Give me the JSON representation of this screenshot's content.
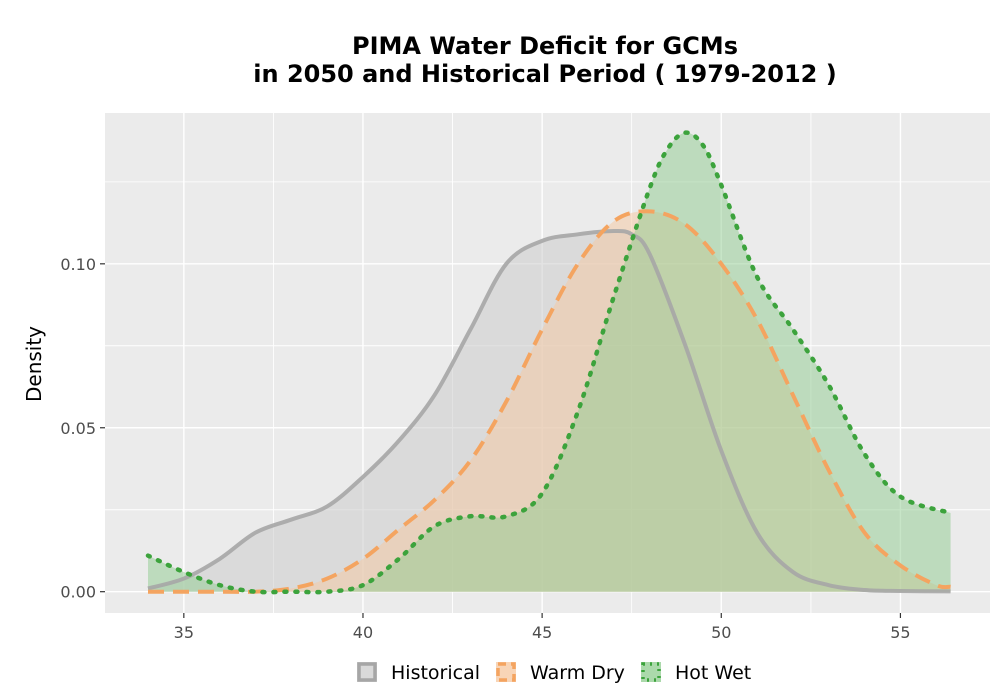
{
  "chart_data": {
    "type": "area",
    "title_line1": "PIMA  Water Deficit for GCMs",
    "title_line2": "in 2050 and Historical Period ( 1979-2012 )",
    "xlabel": "",
    "ylabel": "Density",
    "xlim": [
      32.8,
      57.5
    ],
    "ylim": [
      -0.0065,
      0.146
    ],
    "x_ticks": [
      35,
      40,
      45,
      50,
      55
    ],
    "y_ticks": [
      0.0,
      0.05,
      0.1
    ],
    "y_tick_labels": [
      "0.00",
      "0.05",
      "0.10"
    ],
    "x_tick_labels": [
      "35",
      "40",
      "45",
      "50",
      "55"
    ],
    "grid": true,
    "legend_position": "bottom",
    "series": [
      {
        "name": "Historical",
        "line_color": "#a6a6a6",
        "fill_color": "#cccccc",
        "fill_opacity": 0.55,
        "dash": "solid",
        "x": [
          34,
          35,
          36,
          37,
          38,
          39,
          40,
          41,
          42,
          43,
          44,
          45,
          46,
          47,
          47.5,
          48,
          49,
          50,
          51,
          52,
          53,
          54,
          55,
          56.4
        ],
        "y": [
          0.001,
          0.004,
          0.01,
          0.018,
          0.022,
          0.026,
          0.035,
          0.046,
          0.06,
          0.08,
          0.1,
          0.107,
          0.109,
          0.11,
          0.109,
          0.103,
          0.075,
          0.043,
          0.018,
          0.006,
          0.002,
          0.0005,
          0.0002,
          0.0001
        ]
      },
      {
        "name": "Warm Dry",
        "line_color": "#f4a460",
        "fill_color": "#f5c79f",
        "fill_opacity": 0.5,
        "dash": "dashed",
        "x": [
          34,
          35,
          36,
          37,
          38,
          39,
          40,
          41,
          42,
          43,
          44,
          45,
          46,
          47,
          48,
          49,
          50,
          51,
          52,
          53,
          54,
          55,
          56,
          56.4
        ],
        "y": [
          0.0,
          0.0,
          0.0,
          0.0,
          0.001,
          0.004,
          0.01,
          0.019,
          0.028,
          0.04,
          0.058,
          0.08,
          0.1,
          0.113,
          0.116,
          0.112,
          0.1,
          0.083,
          0.06,
          0.037,
          0.018,
          0.008,
          0.002,
          0.0015
        ]
      },
      {
        "name": "Hot Wet",
        "line_color": "#3ca33c",
        "fill_color": "#8fcc8f",
        "fill_opacity": 0.5,
        "dash": "dotted",
        "x": [
          34,
          35,
          36,
          37,
          38,
          39,
          40,
          41,
          42,
          43,
          44,
          45,
          46,
          47,
          48,
          48.5,
          49,
          49.5,
          50,
          51,
          52,
          53,
          54,
          55,
          56.4
        ],
        "y": [
          0.011,
          0.006,
          0.002,
          0.0,
          0.0,
          0.0,
          0.002,
          0.01,
          0.02,
          0.023,
          0.023,
          0.03,
          0.055,
          0.09,
          0.123,
          0.135,
          0.14,
          0.136,
          0.124,
          0.096,
          0.08,
          0.063,
          0.042,
          0.029,
          0.024
        ]
      }
    ]
  }
}
